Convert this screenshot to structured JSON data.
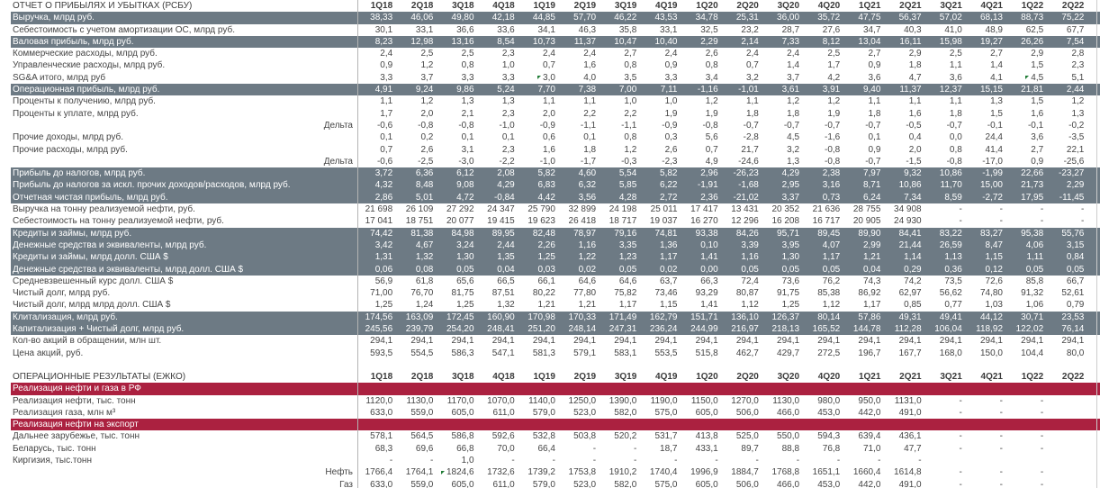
{
  "columns": [
    "1Q18",
    "2Q18",
    "3Q18",
    "4Q18",
    "1Q19",
    "2Q19",
    "3Q19",
    "4Q19",
    "1Q20",
    "2Q20",
    "3Q20",
    "4Q20",
    "1Q21",
    "2Q21",
    "3Q21",
    "4Q21",
    "1Q22",
    "2Q22"
  ],
  "colors": {
    "band_dark": "#6d7a84",
    "band_red": "#ab2140",
    "marker_green": "#1e7b34",
    "header_text": "#3a3a3a",
    "body_text": "#454545"
  },
  "sections": [
    {
      "key": "pnl",
      "title": "ОТЧЕТ О ПРИБЫЛЯХ И УБЫТКАХ (РСБУ)",
      "rows": [
        {
          "label": "Выручка, млрд руб.",
          "style": "dark",
          "values": [
            "38,33",
            "46,06",
            "49,80",
            "42,18",
            "44,85",
            "57,70",
            "46,22",
            "43,53",
            "34,78",
            "25,31",
            "36,00",
            "35,72",
            "47,75",
            "56,37",
            "57,02",
            "68,13",
            "88,73",
            "75,22"
          ]
        },
        {
          "label": "Себестоимость с учетом амортизации ОС, млрд руб.",
          "style": "normal",
          "values": [
            "30,1",
            "33,1",
            "36,6",
            "33,6",
            "34,1",
            "46,3",
            "35,8",
            "33,1",
            "32,5",
            "23,2",
            "28,7",
            "27,6",
            "34,7",
            "40,3",
            "41,0",
            "48,9",
            "62,5",
            "67,7"
          ]
        },
        {
          "label": "Валовая прибыль, млрд руб.",
          "style": "dark",
          "values": [
            "8,23",
            "12,98",
            "13,16",
            "8,54",
            "10,73",
            "11,37",
            "10,47",
            "10,40",
            "2,29",
            "2,14",
            "7,33",
            "8,12",
            "13,04",
            "16,11",
            "15,98",
            "19,27",
            "26,26",
            "7,54"
          ]
        },
        {
          "label": "Коммерческие расходы, млрд руб.",
          "style": "normal",
          "values": [
            "2,4",
            "2,5",
            "2,5",
            "2,3",
            "2,4",
            "2,4",
            "2,7",
            "2,4",
            "2,6",
            "2,4",
            "2,4",
            "2,5",
            "2,7",
            "2,9",
            "2,5",
            "2,7",
            "2,9",
            "2,8"
          ]
        },
        {
          "label": "Управленческие расходы, млрд руб.",
          "style": "normal",
          "values": [
            "0,9",
            "1,2",
            "0,8",
            "1,0",
            "0,7",
            "1,6",
            "0,8",
            "0,9",
            "0,8",
            "0,7",
            "1,4",
            "1,7",
            "0,9",
            "1,8",
            "1,1",
            "1,4",
            "1,5",
            "2,3"
          ]
        },
        {
          "label": "SG&A итого, млрд руб",
          "style": "normal",
          "values": [
            "3,3",
            "3,7",
            "3,3",
            "3,3",
            "3,0",
            "4,0",
            "3,5",
            "3,3",
            "3,4",
            "3,2",
            "3,7",
            "4,2",
            "3,6",
            "4,7",
            "3,6",
            "4,1",
            "4,5",
            "5,1"
          ]
        },
        {
          "label": "Операционная прибыль, млрд руб.",
          "style": "dark",
          "values": [
            "4,91",
            "9,24",
            "9,86",
            "5,24",
            "7,70",
            "7,38",
            "7,00",
            "7,11",
            "-1,16",
            "-1,01",
            "3,61",
            "3,91",
            "9,40",
            "11,37",
            "12,37",
            "15,15",
            "21,81",
            "2,44"
          ]
        },
        {
          "label": "Проценты к получению, млрд руб.",
          "style": "normal",
          "values": [
            "1,1",
            "1,2",
            "1,3",
            "1,3",
            "1,1",
            "1,1",
            "1,0",
            "1,0",
            "1,2",
            "1,1",
            "1,2",
            "1,2",
            "1,1",
            "1,1",
            "1,1",
            "1,3",
            "1,5",
            "1,2"
          ]
        },
        {
          "label": "Проценты к уплате, млрд руб.",
          "style": "normal",
          "values": [
            "1,7",
            "2,0",
            "2,1",
            "2,3",
            "2,0",
            "2,2",
            "2,2",
            "1,9",
            "1,9",
            "1,8",
            "1,8",
            "1,9",
            "1,8",
            "1,6",
            "1,8",
            "1,5",
            "1,6",
            "1,3"
          ]
        },
        {
          "label": "",
          "right_label": "Дельта",
          "style": "normal",
          "values": [
            "-0,6",
            "-0,8",
            "-0,8",
            "-1,0",
            "-0,9",
            "-1,1",
            "-1,1",
            "-0,9",
            "-0,8",
            "-0,7",
            "-0,7",
            "-0,7",
            "-0,7",
            "-0,5",
            "-0,7",
            "-0,1",
            "-0,1",
            "-0,2"
          ]
        },
        {
          "label": "Прочие доходы, млрд руб.",
          "style": "normal",
          "values": [
            "0,1",
            "0,2",
            "0,1",
            "0,1",
            "0,6",
            "0,1",
            "0,8",
            "0,3",
            "5,6",
            "-2,8",
            "4,5",
            "-1,6",
            "0,1",
            "0,4",
            "0,0",
            "24,4",
            "3,6",
            "-3,5"
          ]
        },
        {
          "label": "Прочие расходы, млрд руб.",
          "style": "normal",
          "values": [
            "0,7",
            "2,6",
            "3,1",
            "2,3",
            "1,6",
            "1,8",
            "1,2",
            "2,6",
            "0,7",
            "21,7",
            "3,2",
            "-0,8",
            "0,9",
            "2,0",
            "0,8",
            "41,4",
            "2,7",
            "22,1"
          ]
        },
        {
          "label": "",
          "right_label": "Дельта",
          "style": "normal",
          "values": [
            "-0,6",
            "-2,5",
            "-3,0",
            "-2,2",
            "-1,0",
            "-1,7",
            "-0,3",
            "-2,3",
            "4,9",
            "-24,6",
            "1,3",
            "-0,8",
            "-0,7",
            "-1,5",
            "-0,8",
            "-17,0",
            "0,9",
            "-25,6"
          ]
        },
        {
          "label": "Прибыль до налогов, млрд руб.",
          "style": "dark",
          "values": [
            "3,72",
            "6,36",
            "6,12",
            "2,08",
            "5,82",
            "4,60",
            "5,54",
            "5,82",
            "2,96",
            "-26,23",
            "4,29",
            "2,38",
            "7,97",
            "9,32",
            "10,86",
            "-1,99",
            "22,66",
            "-23,27"
          ]
        },
        {
          "label": "Прибыль до налогов за искл. прочих доходов/расходов, млрд руб.",
          "style": "dark",
          "values": [
            "4,32",
            "8,48",
            "9,08",
            "4,29",
            "6,83",
            "6,32",
            "5,85",
            "6,22",
            "-1,91",
            "-1,68",
            "2,95",
            "3,16",
            "8,71",
            "10,86",
            "11,70",
            "15,00",
            "21,73",
            "2,29"
          ]
        },
        {
          "label": "Отчетная чистая прибыль, млрд руб.",
          "style": "dark",
          "values": [
            "2,86",
            "5,01",
            "4,72",
            "-0,84",
            "4,42",
            "3,56",
            "4,28",
            "2,72",
            "2,36",
            "-21,02",
            "3,37",
            "0,73",
            "6,24",
            "7,34",
            "8,59",
            "-2,72",
            "17,95",
            "-11,45"
          ]
        },
        {
          "label": "Выручка на тонну реализуемой нефти, руб.",
          "style": "normal",
          "values": [
            "21 698",
            "26 109",
            "27 292",
            "24 347",
            "25 790",
            "32 899",
            "24 198",
            "25 011",
            "17 417",
            "13 431",
            "20 352",
            "21 636",
            "28 755",
            "34 908",
            "-",
            "-",
            "-",
            "-"
          ]
        },
        {
          "label": "Себестоимость на тонну реализуемой нефти, руб.",
          "style": "normal",
          "values": [
            "17 041",
            "18 751",
            "20 077",
            "19 415",
            "19 623",
            "26 418",
            "18 717",
            "19 037",
            "16 270",
            "12 296",
            "16 208",
            "16 717",
            "20 905",
            "24 930",
            "-",
            "-",
            "-",
            "-"
          ]
        },
        {
          "label": "Кредиты и займы, млрд руб.",
          "style": "dark",
          "values": [
            "74,42",
            "81,38",
            "84,98",
            "89,95",
            "82,48",
            "78,97",
            "79,16",
            "74,81",
            "93,38",
            "84,26",
            "95,71",
            "89,45",
            "89,90",
            "84,41",
            "83,22",
            "83,27",
            "95,38",
            "55,76"
          ]
        },
        {
          "label": "Денежные средства и эквиваленты, млрд руб.",
          "style": "dark",
          "values": [
            "3,42",
            "4,67",
            "3,24",
            "2,44",
            "2,26",
            "1,16",
            "3,35",
            "1,36",
            "0,10",
            "3,39",
            "3,95",
            "4,07",
            "2,99",
            "21,44",
            "26,59",
            "8,47",
            "4,06",
            "3,15"
          ]
        },
        {
          "label": "Кредиты и займы, млрд долл. США $",
          "style": "dark",
          "values": [
            "1,31",
            "1,32",
            "1,30",
            "1,35",
            "1,25",
            "1,22",
            "1,23",
            "1,17",
            "1,41",
            "1,16",
            "1,30",
            "1,17",
            "1,21",
            "1,14",
            "1,13",
            "1,15",
            "1,11",
            "0,84"
          ]
        },
        {
          "label": "Денежные средства и эквиваленты, млрд долл. США $",
          "style": "dark",
          "values": [
            "0,06",
            "0,08",
            "0,05",
            "0,04",
            "0,03",
            "0,02",
            "0,05",
            "0,02",
            "0,00",
            "0,05",
            "0,05",
            "0,05",
            "0,04",
            "0,29",
            "0,36",
            "0,12",
            "0,05",
            "0,05"
          ]
        },
        {
          "label": "Средневзвешенный курс долл. США $",
          "style": "normal",
          "values": [
            "56,9",
            "61,8",
            "65,6",
            "66,5",
            "66,1",
            "64,6",
            "64,6",
            "63,7",
            "66,3",
            "72,4",
            "73,6",
            "76,2",
            "74,3",
            "74,2",
            "73,5",
            "72,6",
            "85,8",
            "66,7"
          ]
        },
        {
          "label": "Чистый долг, млрд руб.",
          "style": "normal",
          "values": [
            "71,00",
            "76,70",
            "81,75",
            "87,51",
            "80,22",
            "77,80",
            "75,82",
            "73,46",
            "93,29",
            "80,87",
            "91,75",
            "85,38",
            "86,92",
            "62,97",
            "56,62",
            "74,80",
            "91,32",
            "52,61"
          ]
        },
        {
          "label": "Чистый долг, млрд млрд долл. США $",
          "style": "normal",
          "values": [
            "1,25",
            "1,24",
            "1,25",
            "1,32",
            "1,21",
            "1,21",
            "1,17",
            "1,15",
            "1,41",
            "1,12",
            "1,25",
            "1,12",
            "1,17",
            "0,85",
            "0,77",
            "1,03",
            "1,06",
            "0,79"
          ]
        },
        {
          "label": "Клитализация, млрд руб.",
          "style": "dark",
          "values": [
            "174,56",
            "163,09",
            "172,45",
            "160,90",
            "170,98",
            "170,33",
            "171,49",
            "162,79",
            "151,71",
            "136,10",
            "126,37",
            "80,14",
            "57,86",
            "49,31",
            "49,41",
            "44,12",
            "30,71",
            "23,53"
          ]
        },
        {
          "label": "Капитализация + Чистый долг, млрд руб.",
          "style": "dark",
          "values": [
            "245,56",
            "239,79",
            "254,20",
            "248,41",
            "251,20",
            "248,14",
            "247,31",
            "236,24",
            "244,99",
            "216,97",
            "218,13",
            "165,52",
            "144,78",
            "112,28",
            "106,04",
            "118,92",
            "122,02",
            "76,14"
          ]
        },
        {
          "label": "Кол-во акций в обращении, млн шт.",
          "style": "normal",
          "values": [
            "294,1",
            "294,1",
            "294,1",
            "294,1",
            "294,1",
            "294,1",
            "294,1",
            "294,1",
            "294,1",
            "294,1",
            "294,1",
            "294,1",
            "294,1",
            "294,1",
            "294,1",
            "294,1",
            "294,1",
            "294,1"
          ]
        },
        {
          "label": "Цена акций, руб.",
          "style": "normal",
          "values": [
            "593,5",
            "554,5",
            "586,3",
            "547,1",
            "581,3",
            "579,1",
            "583,1",
            "553,5",
            "515,8",
            "462,7",
            "429,7",
            "272,5",
            "196,7",
            "167,7",
            "168,0",
            "150,0",
            "104,4",
            "80,0"
          ]
        }
      ]
    },
    {
      "key": "ops",
      "title": "ОПЕРАЦИОННЫЕ РЕЗУЛЬТАТЫ (ЕЖКО)",
      "rows": [
        {
          "label": "Реализация нефти и газа в РФ",
          "style": "red",
          "values": [
            "",
            "",
            "",
            "",
            "",
            "",
            "",
            "",
            "",
            "",
            "",
            "",
            "",
            "",
            "",
            "",
            "",
            ""
          ]
        },
        {
          "label": "Реализация нефти, тыс. тонн",
          "style": "normal",
          "values": [
            "1120,0",
            "1130,0",
            "1170,0",
            "1070,0",
            "1140,0",
            "1250,0",
            "1390,0",
            "1190,0",
            "1150,0",
            "1270,0",
            "1130,0",
            "980,0",
            "950,0",
            "1131,0",
            "-",
            "-",
            "-",
            ""
          ]
        },
        {
          "label": "Реализация газа, млн м³",
          "style": "normal",
          "values": [
            "633,0",
            "559,0",
            "605,0",
            "611,0",
            "579,0",
            "523,0",
            "582,0",
            "575,0",
            "605,0",
            "506,0",
            "466,0",
            "453,0",
            "442,0",
            "491,0",
            "-",
            "-",
            "-",
            ""
          ]
        },
        {
          "label": "Реализация нефти на экспорт",
          "style": "red",
          "values": [
            "",
            "",
            "",
            "",
            "",
            "",
            "",
            "",
            "",
            "",
            "",
            "",
            "",
            "",
            "",
            "",
            "",
            ""
          ]
        },
        {
          "label": "Дальнее зарубежье, тыс. тонн",
          "style": "normal",
          "values": [
            "578,1",
            "564,5",
            "586,8",
            "592,6",
            "532,8",
            "503,8",
            "520,2",
            "531,7",
            "413,8",
            "525,0",
            "550,0",
            "594,3",
            "639,4",
            "436,1",
            "-",
            "-",
            "-",
            ""
          ]
        },
        {
          "label": "Беларусь, тыс. тонн",
          "style": "normal",
          "values": [
            "68,3",
            "69,6",
            "66,8",
            "70,0",
            "66,4",
            "-",
            "-",
            "18,7",
            "433,1",
            "89,7",
            "88,8",
            "76,8",
            "71,0",
            "47,7",
            "-",
            "-",
            "-",
            ""
          ]
        },
        {
          "label": "Киргизия, тыс.тонн",
          "style": "normal",
          "values": [
            "-",
            "-",
            "1,0",
            "-",
            "-",
            "-",
            "-",
            "-",
            "-",
            "-",
            "-",
            "-",
            "-",
            "-",
            "",
            "",
            "",
            ""
          ]
        },
        {
          "label": "",
          "right_label": "Нефть",
          "style": "normal",
          "values": [
            "1766,4",
            "1764,1",
            "1824,6",
            "1732,6",
            "1739,2",
            "1753,8",
            "1910,2",
            "1740,4",
            "1996,9",
            "1884,7",
            "1768,8",
            "1651,1",
            "1660,4",
            "1614,8",
            "-",
            "-",
            "-",
            ""
          ]
        },
        {
          "label": "",
          "right_label": "Газ",
          "style": "normal",
          "values": [
            "633,0",
            "559,0",
            "605,0",
            "611,0",
            "579,0",
            "523,0",
            "582,0",
            "575,0",
            "605,0",
            "506,0",
            "466,0",
            "453,0",
            "442,0",
            "491,0",
            "-",
            "-",
            "-",
            ""
          ]
        }
      ]
    }
  ],
  "green_markers": [
    {
      "section": 0,
      "row": 5,
      "col": 4
    },
    {
      "section": 0,
      "row": 5,
      "col": 16
    },
    {
      "section": 1,
      "row": 7,
      "col": 2
    }
  ]
}
